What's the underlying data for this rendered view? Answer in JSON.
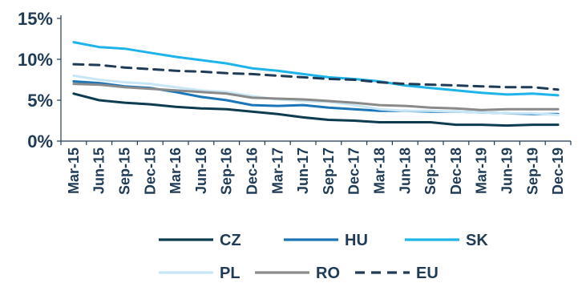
{
  "chart_data": {
    "type": "line",
    "title": "",
    "xlabel": "",
    "ylabel": "",
    "ylim": [
      0,
      15
    ],
    "y_ticks": [
      "0%",
      "5%",
      "10%",
      "15%"
    ],
    "y_tick_values": [
      0,
      5,
      10,
      15
    ],
    "categories": [
      "Mar-15",
      "Jun-15",
      "Sep-15",
      "Dec-15",
      "Mar-16",
      "Jun-16",
      "Sep-16",
      "Dec-16",
      "Mar-17",
      "Jun-17",
      "Sep-17",
      "Dec-17",
      "Mar-18",
      "Jun-18",
      "Sep-18",
      "Dec-18",
      "Mar-19",
      "Jun-19",
      "Sep-19",
      "Dec-19"
    ],
    "grid": false,
    "legend_position": "bottom",
    "series": [
      {
        "name": "CZ",
        "color": "#0d3b4f",
        "dash": "solid",
        "values": [
          5.8,
          5.0,
          4.7,
          4.5,
          4.2,
          4.0,
          3.9,
          3.6,
          3.3,
          2.9,
          2.6,
          2.5,
          2.3,
          2.3,
          2.3,
          2.0,
          2.0,
          1.9,
          2.0,
          2.0
        ]
      },
      {
        "name": "HU",
        "color": "#1a76b8",
        "dash": "solid",
        "values": [
          7.3,
          7.1,
          6.7,
          6.5,
          6.0,
          5.4,
          5.0,
          4.4,
          4.3,
          4.4,
          4.1,
          3.9,
          3.7,
          3.7,
          3.6,
          3.6,
          3.5,
          3.4,
          3.3,
          3.3
        ]
      },
      {
        "name": "SK",
        "color": "#1eb4ea",
        "dash": "solid",
        "values": [
          12.1,
          11.5,
          11.3,
          10.8,
          10.3,
          9.9,
          9.5,
          8.9,
          8.6,
          8.2,
          7.8,
          7.6,
          7.3,
          6.8,
          6.5,
          6.2,
          5.9,
          5.7,
          5.8,
          5.6
        ]
      },
      {
        "name": "PL",
        "color": "#c8e6f5",
        "dash": "solid",
        "values": [
          8.0,
          7.5,
          7.2,
          7.0,
          6.6,
          6.2,
          6.0,
          5.5,
          5.1,
          4.9,
          4.8,
          4.4,
          3.9,
          3.7,
          3.7,
          3.6,
          3.5,
          3.4,
          3.4,
          3.2
        ]
      },
      {
        "name": "RO",
        "color": "#8a8a8a",
        "dash": "solid",
        "values": [
          7.0,
          6.9,
          6.6,
          6.4,
          6.2,
          6.0,
          5.8,
          5.3,
          5.2,
          5.1,
          4.9,
          4.7,
          4.4,
          4.3,
          4.1,
          4.0,
          3.8,
          3.9,
          3.9,
          3.9
        ]
      },
      {
        "name": "EU",
        "color": "#1f3b55",
        "dash": "dashed",
        "values": [
          9.4,
          9.3,
          9.0,
          8.8,
          8.6,
          8.5,
          8.3,
          8.2,
          8.0,
          7.8,
          7.6,
          7.5,
          7.2,
          7.0,
          6.9,
          6.8,
          6.7,
          6.6,
          6.6,
          6.3
        ]
      }
    ]
  }
}
